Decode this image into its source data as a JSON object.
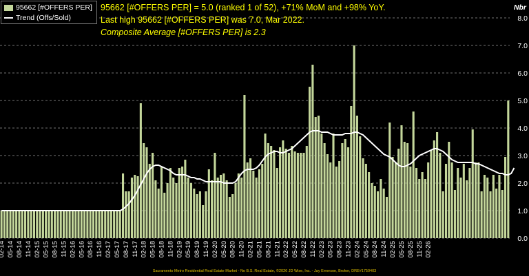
{
  "legend": {
    "bar_label": "95662 [#OFFERS PER]",
    "line_label": "Trend (Offs/Sold)"
  },
  "annotations": {
    "line1": "95662 [#OFFERS PER] = 5.0 (ranked 1 of 52), +71% MoM and +98% YoY.",
    "line2": "Last high 95662 [#OFFERS PER] was 7.0, Mar 2022.",
    "line3": "Composite Average [#OFFERS PER] is 2.3"
  },
  "footer": "Sacramento Metro Residential Real Estate Market - No B.S. Real Estate, ©2026 JD Wise, Inc. - Jay Emerson, Broker, DRE#1750403",
  "colors": {
    "bar": "#c4d79b",
    "line": "#ffffff",
    "grid": "#9a9a9a",
    "background": "#000000",
    "annotation": "#ffff00"
  },
  "chart_data": {
    "type": "bar",
    "y_unit": "Nbr",
    "ylim": [
      0,
      8
    ],
    "yticks": [
      "0.0",
      "1.0",
      "2.0",
      "3.0",
      "4.0",
      "5.0",
      "6.0",
      "7.0",
      "8.0"
    ],
    "grid": "horizontal dashed",
    "legend_position": "top-left",
    "x_start": "02-14",
    "x_tick_labels": [
      "02-14",
      "05-14",
      "08-14",
      "11-14",
      "02-15",
      "05-15",
      "08-15",
      "11-15",
      "02-16",
      "05-16",
      "08-16",
      "11-16",
      "02-17",
      "05-17",
      "08-17",
      "11-17",
      "02-18",
      "05-18",
      "08-18",
      "11-18",
      "02-19",
      "05-19",
      "08-19",
      "11-19",
      "02-20",
      "05-20",
      "08-20",
      "11-20",
      "02-21",
      "05-21",
      "08-21",
      "11-21",
      "02-22",
      "05-22",
      "08-22",
      "11-22",
      "02-23",
      "05-23",
      "08-23",
      "11-23",
      "02-24",
      "05-24",
      "08-24",
      "11-24",
      "02-25",
      "05-25",
      "08-25",
      "11-25",
      "02-26"
    ],
    "series": [
      {
        "name": "95662 [#OFFERS PER]",
        "type": "bar",
        "values": [
          1.0,
          1.0,
          1.0,
          1.0,
          1.0,
          1.0,
          1.0,
          1.0,
          1.0,
          1.0,
          1.0,
          1.0,
          1.0,
          1.0,
          1.0,
          1.0,
          1.0,
          1.0,
          1.0,
          1.0,
          1.0,
          1.0,
          1.0,
          1.0,
          1.0,
          1.0,
          1.0,
          1.0,
          1.0,
          1.0,
          1.0,
          1.0,
          1.0,
          1.0,
          1.0,
          1.0,
          1.0,
          1.0,
          1.0,
          1.0,
          1.0,
          2.35,
          1.7,
          1.7,
          2.2,
          2.3,
          2.25,
          4.9,
          3.45,
          3.3,
          2.7,
          3.1,
          2.1,
          1.8,
          2.6,
          1.65,
          2.0,
          2.55,
          2.2,
          2.0,
          2.55,
          2.6,
          2.85,
          2.2,
          2.0,
          1.8,
          1.6,
          1.7,
          1.2,
          1.7,
          2.5,
          2.1,
          3.1,
          2.2,
          2.3,
          2.35,
          2.1,
          1.5,
          1.6,
          2.0,
          2.35,
          2.2,
          5.2,
          2.75,
          2.9,
          2.45,
          2.2,
          2.5,
          2.7,
          3.8,
          3.45,
          3.35,
          3.2,
          2.55,
          3.3,
          3.55,
          3.25,
          3.1,
          3.35,
          3.15,
          3.1,
          3.1,
          3.1,
          3.35,
          5.5,
          6.3,
          4.4,
          4.45,
          3.8,
          3.45,
          3.05,
          2.75,
          3.8,
          2.6,
          2.8,
          3.45,
          3.6,
          3.3,
          4.8,
          7.0,
          4.45,
          3.7,
          2.9,
          2.7,
          2.4,
          2.0,
          1.9,
          1.7,
          2.15,
          1.8,
          1.5,
          4.2,
          2.95,
          2.75,
          3.25,
          4.1,
          3.5,
          3.45,
          2.6,
          4.6,
          2.55,
          2.15,
          2.4,
          2.15,
          2.75,
          3.2,
          3.55,
          3.85,
          3.1,
          1.7,
          2.7,
          3.5,
          2.75,
          1.75,
          2.55,
          2.2,
          2.7,
          2.1,
          2.55,
          3.95,
          2.75,
          2.75,
          1.7,
          2.3,
          2.2,
          1.7,
          2.3,
          1.8,
          2.3,
          1.75,
          2.95,
          5.0
        ]
      },
      {
        "name": "Trend (Offs/Sold)",
        "type": "line",
        "values": [
          1.0,
          1.0,
          1.0,
          1.0,
          1.0,
          1.0,
          1.0,
          1.0,
          1.0,
          1.0,
          1.0,
          1.0,
          1.0,
          1.0,
          1.0,
          1.0,
          1.0,
          1.0,
          1.0,
          1.0,
          1.0,
          1.0,
          1.0,
          1.0,
          1.0,
          1.0,
          1.0,
          1.0,
          1.0,
          1.0,
          1.0,
          1.0,
          1.0,
          1.0,
          1.0,
          1.0,
          1.0,
          1.0,
          1.0,
          1.0,
          1.0,
          1.05,
          1.15,
          1.25,
          1.4,
          1.55,
          1.75,
          1.95,
          2.15,
          2.35,
          2.5,
          2.6,
          2.65,
          2.65,
          2.6,
          2.55,
          2.5,
          2.45,
          2.35,
          2.3,
          2.3,
          2.3,
          2.3,
          2.25,
          2.2,
          2.2,
          2.15,
          2.15,
          2.1,
          2.05,
          2.05,
          2.05,
          2.05,
          2.05,
          2.05,
          2.0,
          2.0,
          2.0,
          2.0,
          2.05,
          2.2,
          2.35,
          2.45,
          2.5,
          2.5,
          2.5,
          2.55,
          2.65,
          2.8,
          2.95,
          3.05,
          3.1,
          3.15,
          3.15,
          3.1,
          3.1,
          3.15,
          3.2,
          3.25,
          3.35,
          3.45,
          3.55,
          3.65,
          3.75,
          3.85,
          3.9,
          3.9,
          3.9,
          3.85,
          3.85,
          3.85,
          3.8,
          3.75,
          3.75,
          3.75,
          3.75,
          3.8,
          3.8,
          3.8,
          3.85,
          3.85,
          3.8,
          3.75,
          3.65,
          3.55,
          3.45,
          3.35,
          3.25,
          3.15,
          3.05,
          3.0,
          2.95,
          2.85,
          2.75,
          2.65,
          2.6,
          2.6,
          2.65,
          2.7,
          2.8,
          2.9,
          3.0,
          3.05,
          3.1,
          3.15,
          3.2,
          3.25,
          3.25,
          3.2,
          3.15,
          3.05,
          2.95,
          2.85,
          2.8,
          2.75,
          2.75,
          2.75,
          2.75,
          2.75,
          2.75,
          2.7,
          2.7,
          2.65,
          2.6,
          2.55,
          2.5,
          2.45,
          2.4,
          2.35,
          2.35,
          2.3,
          2.3,
          2.35,
          2.55
        ]
      }
    ]
  }
}
